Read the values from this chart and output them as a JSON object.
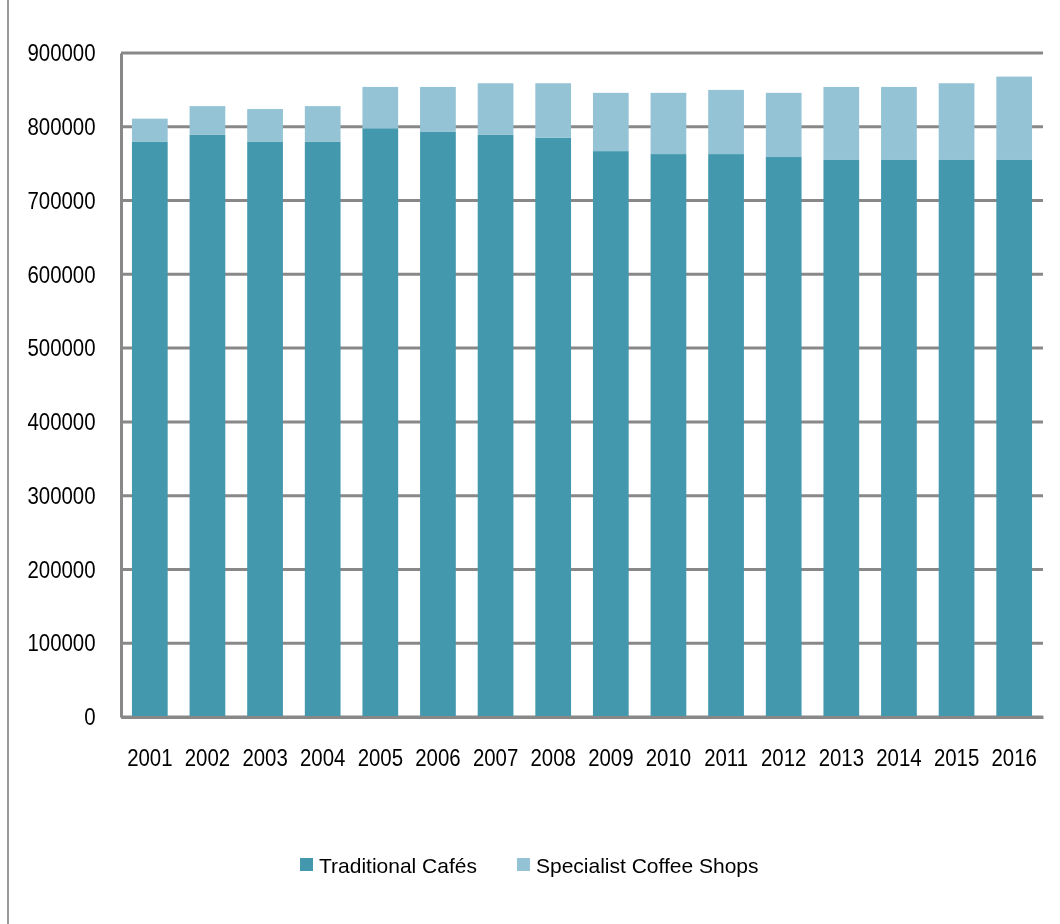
{
  "chart_data": {
    "type": "bar",
    "stacked": true,
    "categories": [
      "2001",
      "2002",
      "2003",
      "2004",
      "2005",
      "2006",
      "2007",
      "2008",
      "2009",
      "2010",
      "2011",
      "2012",
      "2013",
      "2014",
      "2015",
      "2016"
    ],
    "series": [
      {
        "name": "Traditional Cafés",
        "color": "#4398ae",
        "values": [
          780000,
          789000,
          780000,
          780000,
          798000,
          793000,
          789000,
          785000,
          767000,
          763000,
          763000,
          759000,
          755000,
          755000,
          755000,
          755000
        ]
      },
      {
        "name": "Specialist Coffee Shops",
        "color": "#93c3d4",
        "values": [
          31000,
          39000,
          44000,
          48000,
          56000,
          61000,
          70000,
          74000,
          79000,
          83000,
          87000,
          87000,
          99000,
          99000,
          104000,
          113000
        ]
      }
    ],
    "ylim": [
      0,
      900000
    ],
    "yticks": [
      0,
      100000,
      200000,
      300000,
      400000,
      500000,
      600000,
      700000,
      800000,
      900000
    ],
    "grid": "y",
    "legend": "bottom"
  }
}
